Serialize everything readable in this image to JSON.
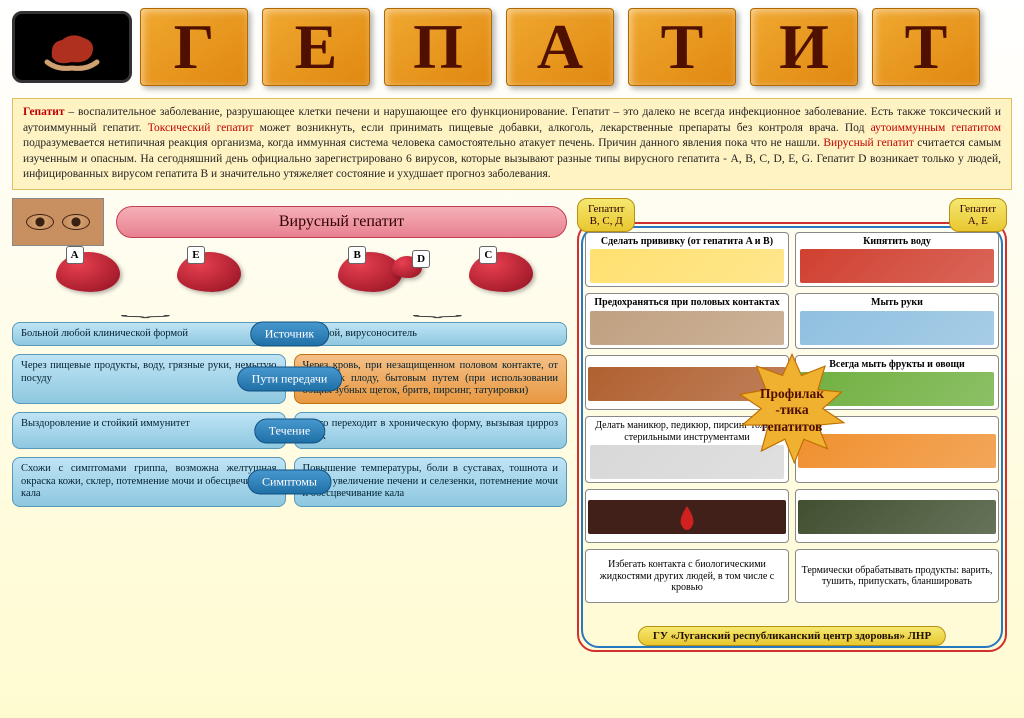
{
  "title_letters": [
    "Г",
    "Е",
    "П",
    "А",
    "Т",
    "И",
    "Т"
  ],
  "colors": {
    "cube_grad_a": "#f0a830",
    "cube_grad_b": "#e08810",
    "cube_text": "#501000",
    "def_bg": "#fff3c4",
    "def_border": "#e0c060",
    "term_red": "#c00000",
    "viral_pill_a": "#f5b0b8",
    "viral_pill_b": "#e88090",
    "blue_box_a": "#bfe4f5",
    "blue_box_b": "#8ec8e0",
    "blue_border": "#5898b8",
    "orange_box_a": "#f5c088",
    "orange_box_b": "#e89840",
    "orange_border": "#c07010",
    "pill_a": "#4898d0",
    "pill_b": "#2070a8",
    "tag_a": "#f5e870",
    "tag_b": "#e8c830",
    "tag_border": "#b89010",
    "frame_red": "#d03030",
    "frame_blue": "#2878c0",
    "liver_a": "#e84050",
    "liver_b": "#901020"
  },
  "definition": {
    "t1": "Гепатит",
    "p1": " – воспалительное заболевание, разрушающее клетки печени и нарушающее его функционирование. Гепатит – это далеко не всегда инфекционное заболевание. Есть также токсический и аутоиммунный гепатит. ",
    "t2": "Токсический гепатит",
    "p2": " может возникнуть, если принимать пищевые добавки, алкоголь, лекарственные препараты без контроля врача. Под ",
    "t3": "аутоиммунным гепатитом",
    "p3": " подразумевается нетипичная реакция организма, когда иммунная система человека самостоятельно атакует печень. Причин данного явления пока что не нашли. ",
    "t4": "Вирусный гепатит",
    "p4": " считается самым изученным и опасным. На сегодняшний день официально зарегистрировано 6 вирусов, которые вызывают разные типы вирусного гепатита -  A, B, C, D, E, G. Гепатит D возникает только у людей, инфицированных вирусом гепатита B и значительно утяжеляет состояние и ухудшает прогноз заболевания."
  },
  "viral_title": "Вирусный гепатит",
  "liver_labels": {
    "a": "A",
    "e": "E",
    "b": "B",
    "d": "D",
    "c": "C"
  },
  "rows": [
    {
      "pill": "Источник",
      "left": "Больной любой клинической формой",
      "right": "Больной, вирусоноситель",
      "orange": false
    },
    {
      "pill": "Пути передачи",
      "left": "Через пищевые продукты, воду, грязные руки, немытую посуду",
      "right": "Через кровь, при незащищенном половом контакте, от матери к плоду, бытовым путем (при использовании общих зубных щеток, бритв, пирсинг, татуировки)",
      "orange": true
    },
    {
      "pill": "Течение",
      "left": "Выздоровление и стойкий иммунитет",
      "right": "Часто переходит в хроническую форму, вызывая цирроз и рак",
      "orange": false
    },
    {
      "pill": "Симптомы",
      "left": "Схожи с симптомами гриппа, возможна желтушная окраска кожи, склер, потемнение мочи и обесцвечивание кала",
      "right": "Повышение температуры, боли в суставах, тошнота и рвота, увеличение печени и селезенки, потемнение мочи и обесцвечивание кала",
      "orange": false
    }
  ],
  "tags": {
    "left": "Гепатит\nВ, С, Д",
    "right": "Гепатит\nА, Е"
  },
  "prevention_center": "Профилак\n-тика\nгепатитов",
  "prevention": [
    {
      "text": "Сделать прививку (от гепатита A и B)",
      "bold": true,
      "img": "#ffe070"
    },
    {
      "text": "Кипятить воду",
      "bold": true,
      "img": "#d04030"
    },
    {
      "text": "Предохраняться при половых контактах",
      "bold": true,
      "img": "#c0a080"
    },
    {
      "text": "Мыть руки",
      "bold": true,
      "img": "#90c0e0"
    },
    {
      "text": "",
      "bold": false,
      "img": "#b06030",
      "spacer": true
    },
    {
      "text": "Всегда мыть фрукты и овощи",
      "bold": true,
      "img": "#70b040"
    },
    {
      "text": "Делать маникюр, педикюр, пирсинг только стерильными инструментами",
      "bold": false,
      "img": "#d8d8d8"
    },
    {
      "text": "",
      "bold": false,
      "img": "#f09030",
      "spacer": true
    },
    {
      "text": "",
      "bold": false,
      "img": "#503020",
      "blood": true,
      "spacer": true
    },
    {
      "text": "",
      "bold": false,
      "img": "#405030",
      "spacer": true
    },
    {
      "text": "Избегать контакта с биологическими жидкостями других людей, в том числе с кровью",
      "bold": false,
      "img": ""
    },
    {
      "text": "Термически обрабатывать продукты: варить, тушить, припускать, бланшировать",
      "bold": false,
      "img": ""
    }
  ],
  "footer": "ГУ «Луганский республиканский центр здоровья» ЛНР"
}
